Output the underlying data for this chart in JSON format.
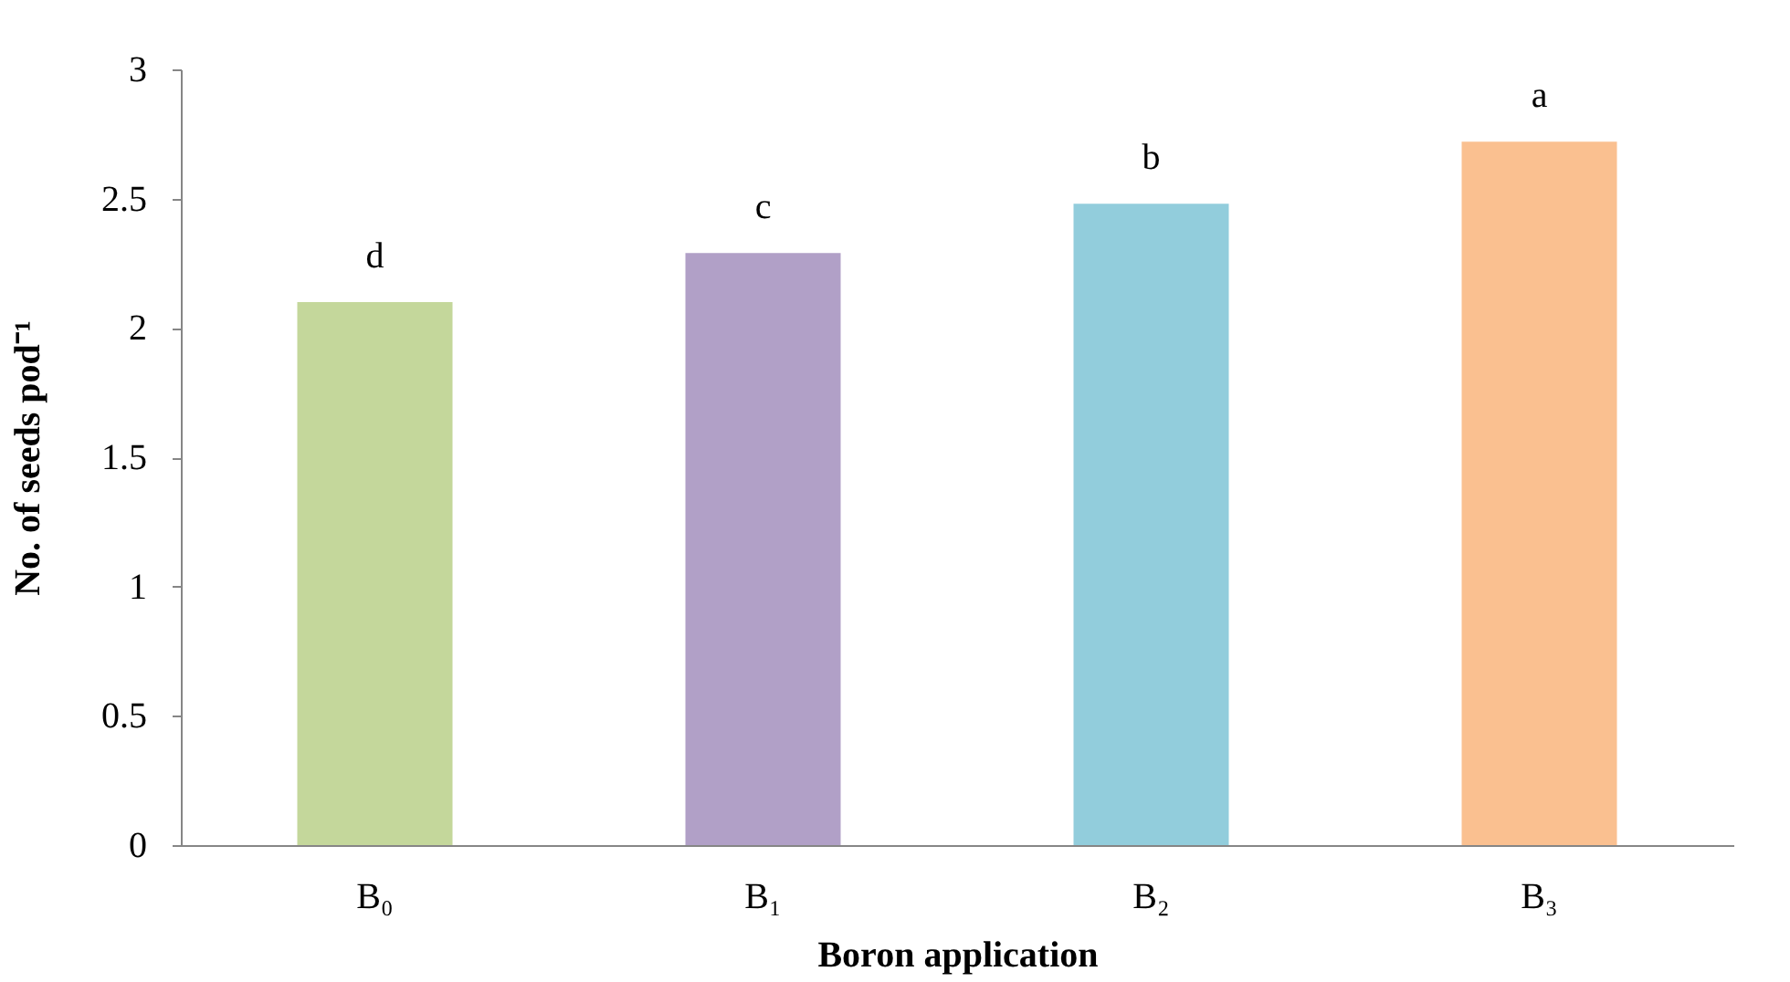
{
  "chart_data": {
    "type": "bar",
    "xlabel": "Boron application",
    "ylabel": "No. of seeds pod⁻¹",
    "categories": [
      "B₀",
      "B₁",
      "B₂",
      "B₃"
    ],
    "values": [
      2.1,
      2.29,
      2.48,
      2.72
    ],
    "colors": [
      "#c4d79b",
      "#b1a0c7",
      "#92cddc",
      "#fac090"
    ],
    "ylim": [
      0,
      3
    ],
    "yticks": [
      0,
      0.5,
      1,
      1.5,
      2,
      2.5,
      3
    ],
    "grid": false,
    "annotations": [
      {
        "text": "d",
        "x": "B₀",
        "y": 2.1
      },
      {
        "text": "c",
        "x": "B₁",
        "y": 2.29
      },
      {
        "text": "b",
        "x": "B₂",
        "y": 2.48
      },
      {
        "text": "a",
        "x": "B₃",
        "y": 2.72
      }
    ]
  }
}
